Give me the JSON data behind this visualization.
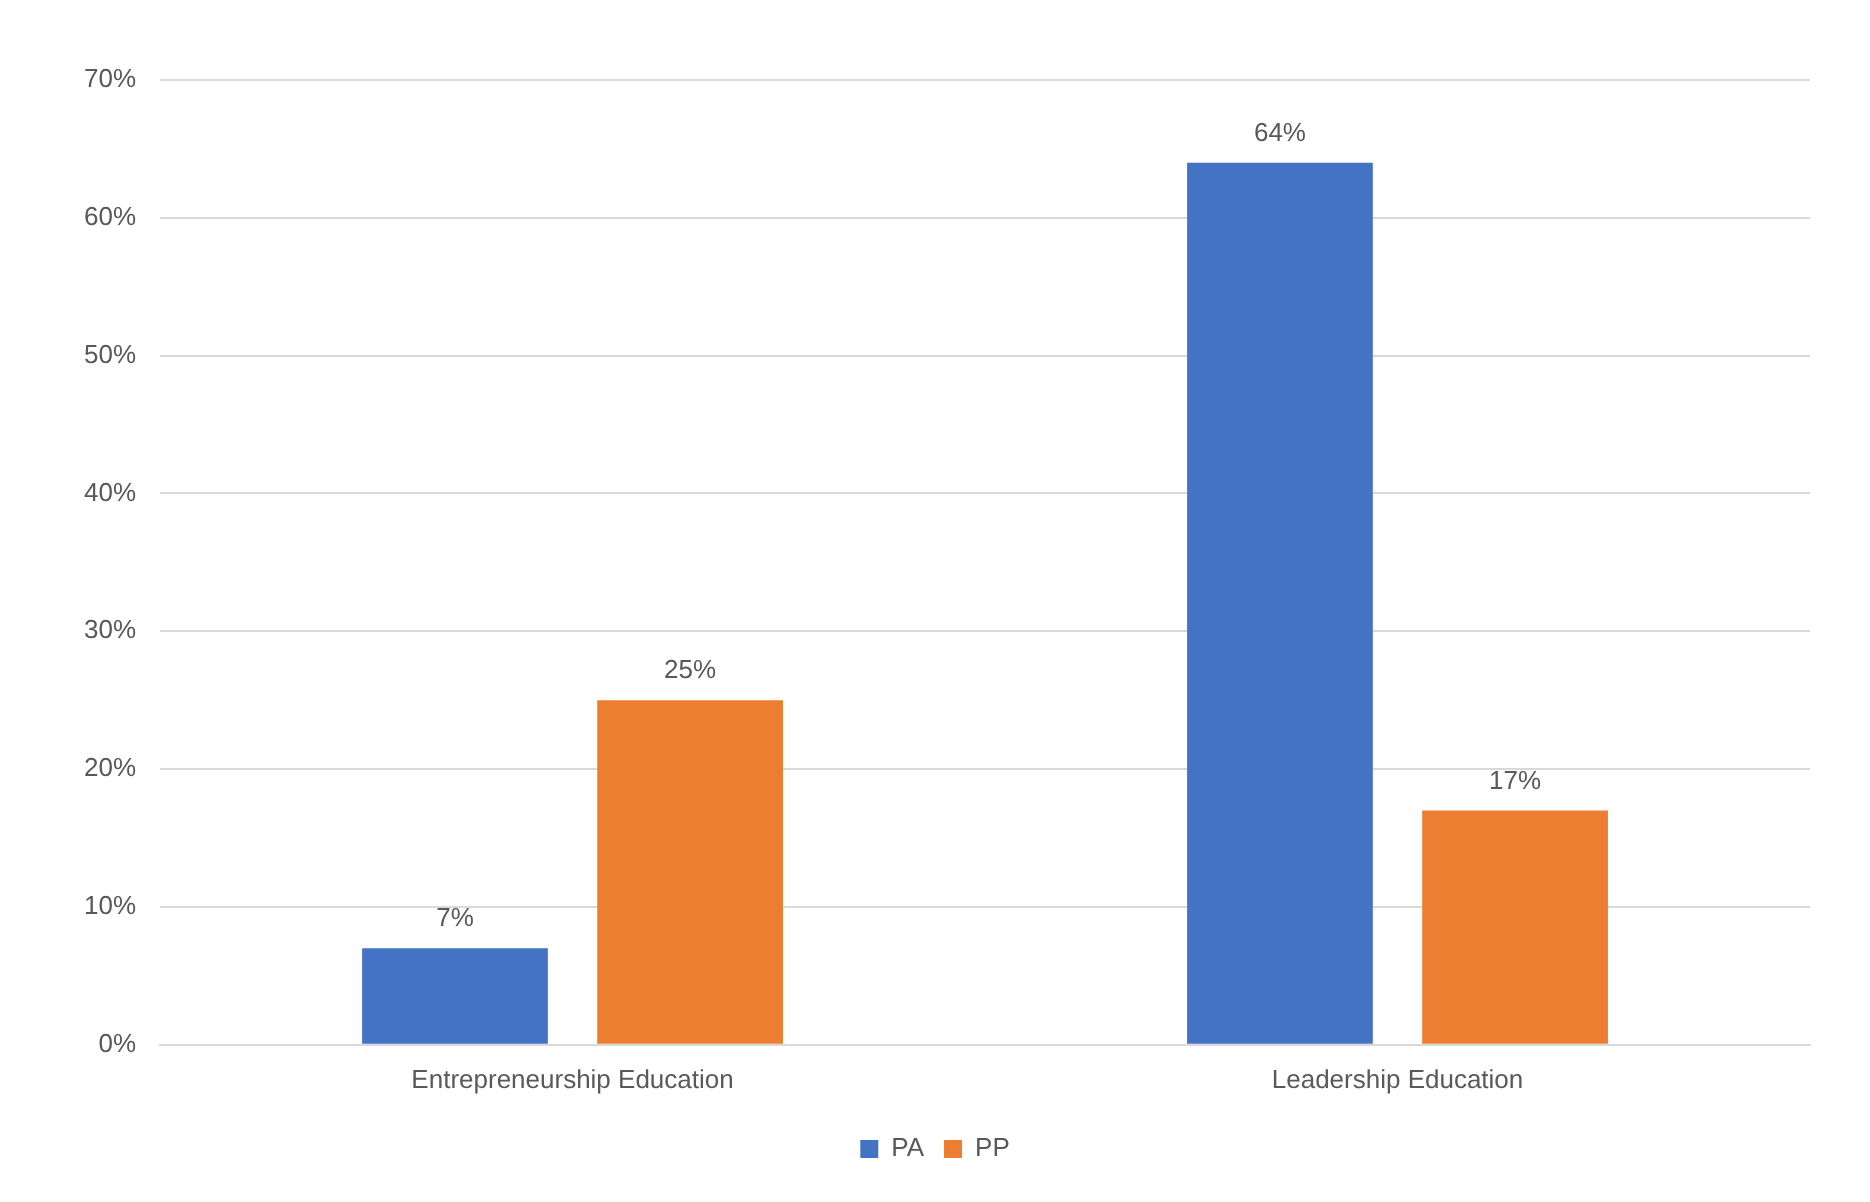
{
  "chart_data": {
    "type": "bar",
    "categories": [
      "Entrepreneurship Education",
      "Leadership Education"
    ],
    "series": [
      {
        "name": "PA",
        "color": "#4472c4",
        "values": [
          7,
          64
        ],
        "value_labels": [
          "7%",
          "64%"
        ]
      },
      {
        "name": "PP",
        "color": "#ed7d31",
        "values": [
          25,
          17
        ],
        "value_labels": [
          "25%",
          "17%"
        ]
      }
    ],
    "ylim": [
      0,
      70
    ],
    "yticks": [
      {
        "value": 0,
        "label": "0%"
      },
      {
        "value": 10,
        "label": "10%"
      },
      {
        "value": 20,
        "label": "20%"
      },
      {
        "value": 30,
        "label": "30%"
      },
      {
        "value": 40,
        "label": "40%"
      },
      {
        "value": 50,
        "label": "50%"
      },
      {
        "value": 60,
        "label": "60%"
      },
      {
        "value": 70,
        "label": "70%"
      }
    ],
    "grid": "y",
    "legend": "bottom"
  }
}
